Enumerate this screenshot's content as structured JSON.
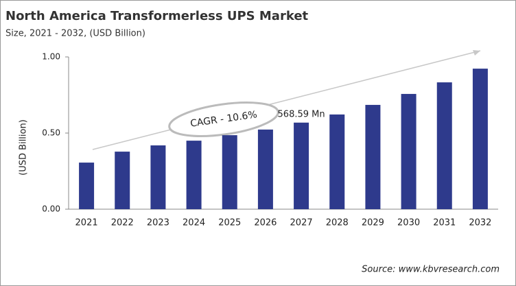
{
  "chart_data": {
    "type": "bar",
    "title": "North America Transformerless  UPS Market",
    "subtitle": "Size, 2021 - 2032, (USD Billion)",
    "y_label": "(USD Billion)",
    "categories": [
      "2021",
      "2022",
      "2023",
      "2024",
      "2025",
      "2026",
      "2027",
      "2028",
      "2029",
      "2030",
      "2031",
      "2032"
    ],
    "values": [
      0.306,
      0.378,
      0.419,
      0.45,
      0.486,
      0.523,
      0.56859,
      0.622,
      0.685,
      0.757,
      0.833,
      0.923
    ],
    "value_labels": [
      null,
      null,
      null,
      null,
      null,
      null,
      "568.59 Mn",
      null,
      null,
      null,
      null,
      null
    ],
    "color": "#2e3a8c",
    "ylim": [
      0,
      1
    ],
    "yticks": [
      {
        "value": 0,
        "label": "0.00"
      },
      {
        "value": 0.5,
        "label": "0.50"
      },
      {
        "value": 1,
        "label": "1.00"
      }
    ],
    "annotation": "CAGR - 10.6%",
    "source": "Source: www.kbvresearch.com"
  }
}
